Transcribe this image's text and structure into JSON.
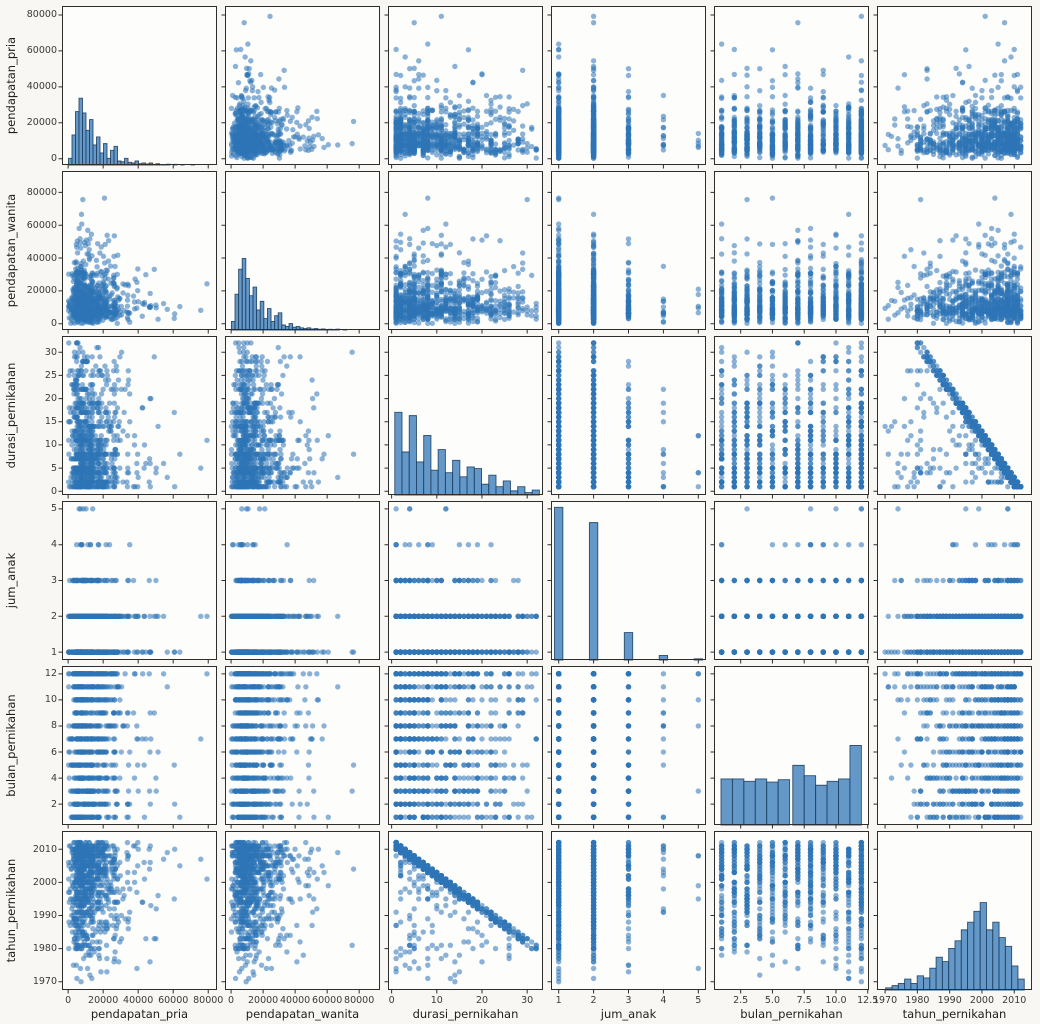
{
  "figure": {
    "background": "#f8f7f4",
    "cell_background": "#fdfdfc",
    "point_color": "#2e75b6",
    "point_alpha": 0.55,
    "hist_fill": "#4e8ac0",
    "hist_edge": "#1b3e5e",
    "spine_color": "#2e2e2e",
    "tick_color": "#3a3a3a",
    "label_color": "#1f1f1f",
    "n_points": 870,
    "seed": 7
  },
  "chart_data": {
    "type": "scatter-matrix",
    "title": "",
    "legend": "none",
    "grid": false,
    "diagonal": "histogram",
    "relationships": [
      {
        "pair": [
          "durasi_pernikahan",
          "tahun_pernikahan"
        ],
        "type": "negative-linear",
        "formula": "tahun_pernikahan ≈ 2013 − durasi_pernikahan"
      }
    ],
    "variables": [
      {
        "name": "pendapatan_pria",
        "range": [
          -3500,
          85000
        ],
        "xticks": {
          "values": [
            0,
            20000,
            40000,
            60000,
            80000
          ],
          "labels": [
            "0",
            "20000",
            "40000",
            "60000",
            "80000"
          ]
        },
        "yticks": {
          "values": [
            0,
            20000,
            40000,
            60000,
            80000
          ],
          "labels": [
            "0",
            "20000",
            "40000",
            "60000",
            "80000"
          ]
        },
        "hist": {
          "start": 200,
          "step": 2000,
          "peak_frac": 0.42,
          "heights": [
            0.1,
            0.45,
            0.8,
            1.0,
            0.78,
            0.52,
            0.68,
            0.3,
            0.42,
            0.18,
            0.32,
            0.1,
            0.22,
            0.28,
            0.06,
            0.05,
            0.1,
            0.04,
            0.03,
            0.06,
            0.02,
            0.03,
            0.015,
            0.03,
            0.01,
            0.02,
            0.008,
            0.006,
            0.012,
            0.004,
            0.01,
            0.003,
            0.006,
            0.002,
            0.004,
            0.006,
            0.002,
            0.003,
            0.002,
            0.004,
            0.002
          ]
        },
        "sampler": {
          "type": "hist"
        }
      },
      {
        "name": "pendapatan_wanita",
        "range": [
          -3800,
          93000
        ],
        "xticks": {
          "values": [
            0,
            20000,
            40000,
            60000,
            80000
          ],
          "labels": [
            "0",
            "20000",
            "40000",
            "60000",
            "80000"
          ]
        },
        "yticks": {
          "values": [
            0,
            20000,
            40000,
            60000,
            80000
          ],
          "labels": [
            "0",
            "20000",
            "40000",
            "60000",
            "80000"
          ]
        },
        "hist": {
          "start": 200,
          "step": 2250,
          "peak_frac": 0.45,
          "heights": [
            0.12,
            0.5,
            0.85,
            1.0,
            0.72,
            0.48,
            0.6,
            0.28,
            0.4,
            0.16,
            0.3,
            0.12,
            0.2,
            0.24,
            0.07,
            0.05,
            0.09,
            0.04,
            0.05,
            0.03,
            0.02,
            0.03,
            0.015,
            0.02,
            0.01,
            0.015,
            0.008,
            0.01,
            0.006,
            0.012,
            0.004,
            0.008,
            0.003,
            0.005,
            0.002,
            0.004,
            0.002,
            0.003,
            0.002,
            0.002,
            0.003
          ]
        },
        "sampler": {
          "type": "hist"
        }
      },
      {
        "name": "durasi_pernikahan",
        "range": [
          -0.8,
          33.5
        ],
        "xticks": {
          "values": [
            0,
            10,
            20,
            30
          ],
          "labels": [
            "0",
            "10",
            "20",
            "30"
          ]
        },
        "yticks": {
          "values": [
            0,
            5,
            10,
            15,
            20,
            25,
            30
          ],
          "labels": [
            "0",
            "5",
            "10",
            "15",
            "20",
            "25",
            "30"
          ]
        },
        "hist": {
          "start": 0.7,
          "step": 1.6,
          "peak_frac": 0.52,
          "heights": [
            1.0,
            0.52,
            0.96,
            0.4,
            0.72,
            0.3,
            0.55,
            0.27,
            0.42,
            0.22,
            0.34,
            0.32,
            0.13,
            0.24,
            0.1,
            0.17,
            0.05,
            0.1,
            0.03,
            0.06
          ]
        },
        "sampler": {
          "type": "hist-int",
          "min": 1,
          "max": 32
        }
      },
      {
        "name": "jum_anak",
        "range": [
          0.78,
          5.22
        ],
        "xticks": {
          "values": [
            1,
            2,
            3,
            4,
            5
          ],
          "labels": [
            "1",
            "2",
            "3",
            "4",
            "5"
          ]
        },
        "yticks": {
          "values": [
            1,
            2,
            3,
            4,
            5
          ],
          "labels": [
            "1",
            "2",
            "3",
            "4",
            "5"
          ]
        },
        "hist": {
          "centers": [
            1,
            2,
            3,
            4,
            5
          ],
          "width": 0.24,
          "peak_frac": 0.96,
          "heights": [
            1.0,
            0.9,
            0.18,
            0.03,
            0.008
          ]
        },
        "sampler": {
          "type": "weights",
          "values": [
            1,
            2,
            3,
            4,
            5
          ],
          "weights": [
            1.0,
            0.9,
            0.18,
            0.04,
            0.01
          ]
        }
      },
      {
        "name": "bulan_pernikahan",
        "range": [
          0.4,
          12.6
        ],
        "xticks": {
          "values": [
            2.5,
            5.0,
            7.5,
            10.0,
            12.5
          ],
          "labels": [
            "2.5",
            "5.0",
            "7.5",
            "10.0",
            "12.5"
          ]
        },
        "yticks": {
          "values": [
            2,
            4,
            6,
            8,
            10,
            12
          ],
          "labels": [
            "2",
            "4",
            "6",
            "8",
            "10",
            "12"
          ]
        },
        "hist": {
          "peak_frac": 0.5,
          "bars": [
            [
              0.95,
              1.85,
              0.58
            ],
            [
              1.85,
              2.75,
              0.58
            ],
            [
              2.75,
              3.65,
              0.55
            ],
            [
              3.65,
              4.55,
              0.58
            ],
            [
              4.55,
              5.45,
              0.54
            ],
            [
              5.45,
              6.35,
              0.57
            ],
            [
              6.6,
              7.5,
              0.75
            ],
            [
              7.5,
              8.4,
              0.62
            ],
            [
              8.4,
              9.3,
              0.5
            ],
            [
              9.3,
              10.2,
              0.55
            ],
            [
              10.2,
              11.1,
              0.58
            ],
            [
              11.1,
              12.0,
              1.0
            ]
          ]
        },
        "sampler": {
          "type": "weights",
          "values": [
            1,
            2,
            3,
            4,
            5,
            6,
            7,
            8,
            9,
            10,
            11,
            12
          ],
          "weights": [
            0.58,
            0.58,
            0.55,
            0.58,
            0.54,
            0.57,
            0.75,
            0.62,
            0.5,
            0.55,
            0.58,
            1.0
          ]
        }
      },
      {
        "name": "tahun_pernikahan",
        "range": [
          1967.5,
          2015.5
        ],
        "xticks": {
          "values": [
            1970,
            1980,
            1990,
            2000,
            2010
          ],
          "labels": [
            "1970",
            "1980",
            "1990",
            "2000",
            "2010"
          ]
        },
        "yticks": {
          "values": [
            1970,
            1980,
            1990,
            2000,
            2010
          ],
          "labels": [
            "1970",
            "1980",
            "1990",
            "2000",
            "2010"
          ]
        },
        "hist": {
          "start": 1970.2,
          "step": 1.95,
          "peak_frac": 0.55,
          "heights": [
            0.02,
            0.04,
            0.06,
            0.1,
            0.06,
            0.13,
            0.11,
            0.2,
            0.3,
            0.26,
            0.38,
            0.45,
            0.55,
            0.62,
            0.72,
            0.8,
            0.55,
            0.62,
            0.48,
            0.4,
            0.22,
            0.1
          ]
        },
        "sampler": {
          "type": "derived",
          "base": 2013,
          "minus": "durasi_pernikahan",
          "near_p": 0.8,
          "near_span": 3,
          "floor": 1970
        }
      }
    ]
  }
}
